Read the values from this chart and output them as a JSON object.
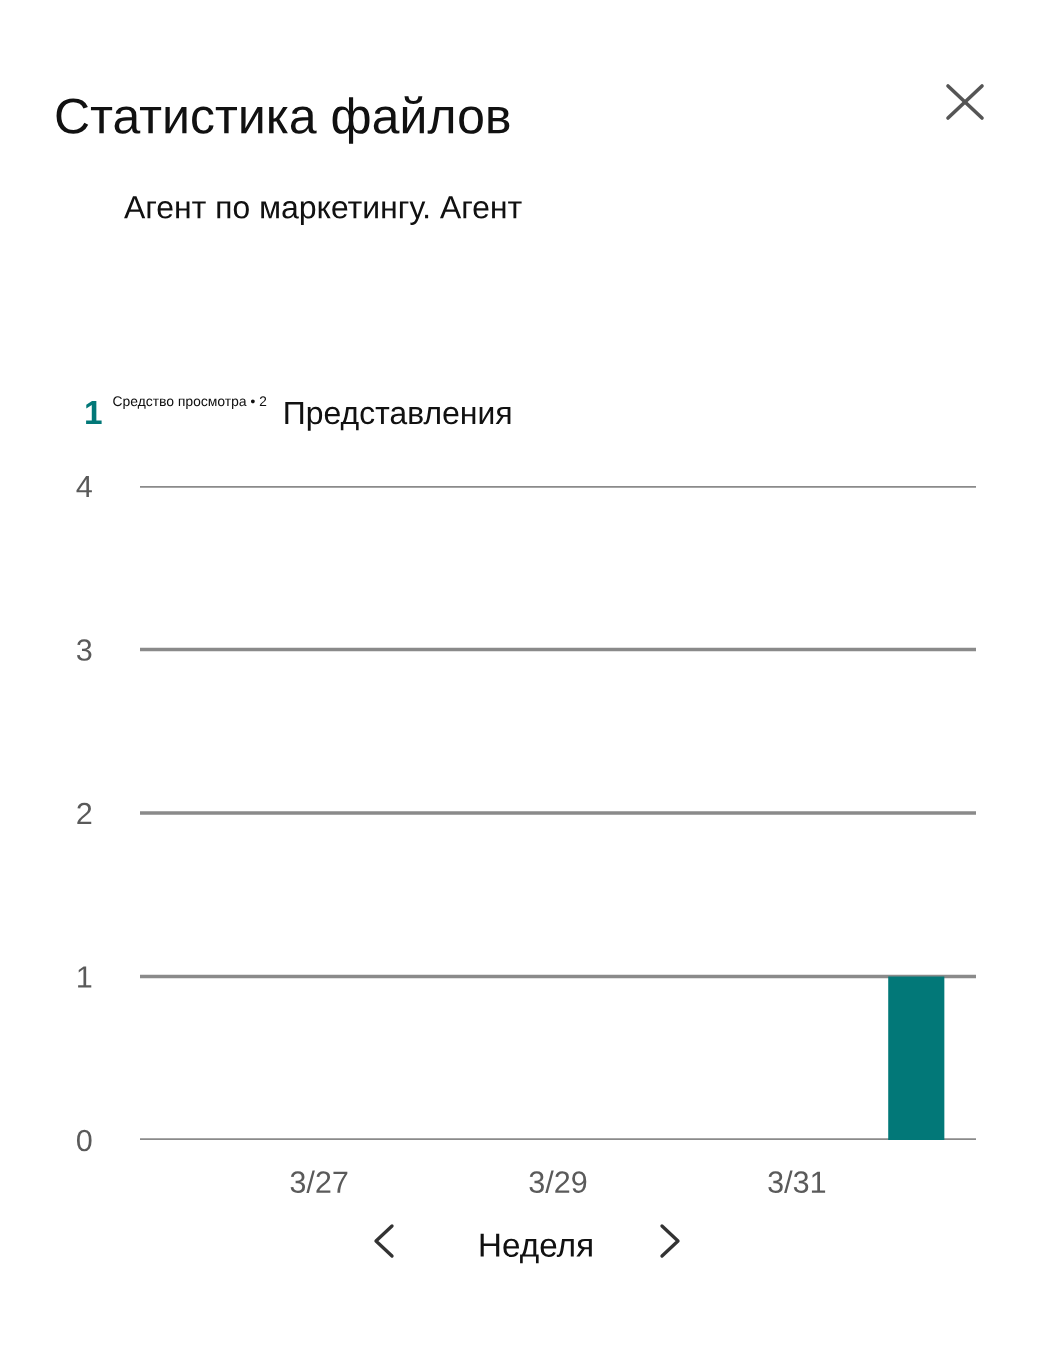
{
  "chart_data": {
    "type": "bar",
    "title": "Статистика файлов",
    "subtitle": "Агент по маркетингу. Агент",
    "annotations": [
      "1",
      "Средство просмотра • 2",
      "Представления"
    ],
    "xlabel": "Неделя",
    "categories": [
      null,
      "3/27",
      null,
      "3/29",
      null,
      "3/31",
      null
    ],
    "values": [
      0,
      0,
      0,
      0,
      0,
      0,
      1
    ],
    "color": "#027878",
    "ylim": [
      0,
      4
    ],
    "yticks": [
      0,
      1,
      2,
      3,
      4
    ],
    "grid": "y"
  }
}
